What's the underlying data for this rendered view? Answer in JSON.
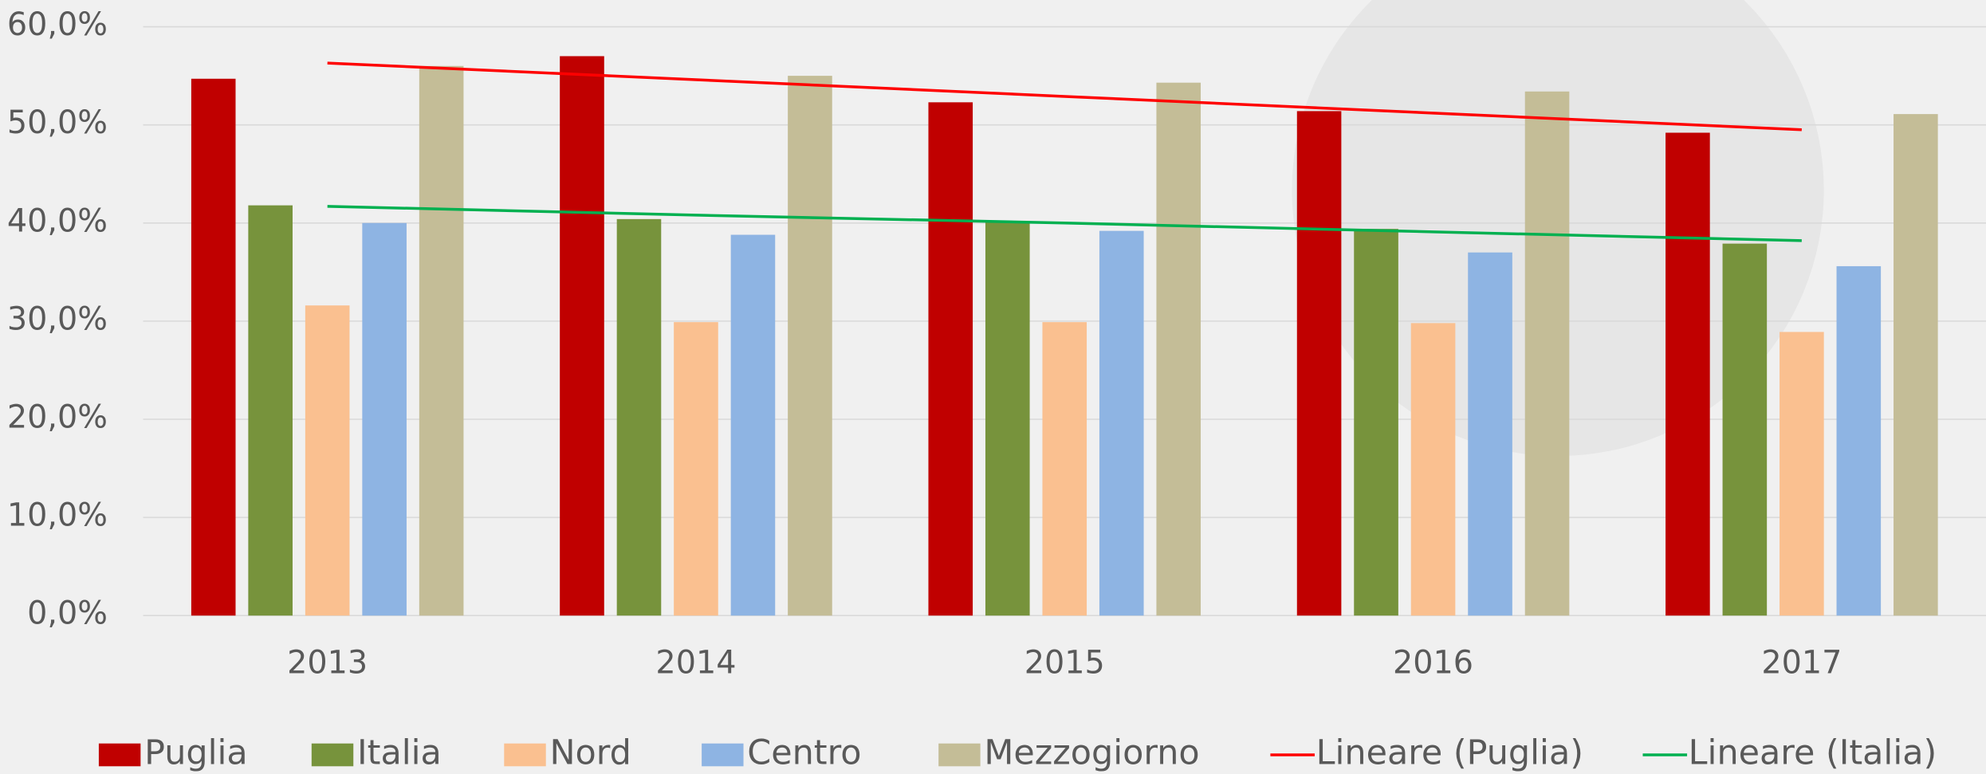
{
  "chart_data": {
    "type": "bar",
    "categories": [
      "2013",
      "2014",
      "2015",
      "2016",
      "2017"
    ],
    "series": [
      {
        "name": "Puglia",
        "color": "#c00000",
        "values": [
          54.7,
          57.0,
          52.3,
          51.4,
          49.2
        ]
      },
      {
        "name": "Italia",
        "color": "#77933c",
        "values": [
          41.8,
          40.4,
          40.1,
          39.4,
          37.9
        ]
      },
      {
        "name": "Nord",
        "color": "#fac090",
        "values": [
          31.6,
          29.9,
          29.9,
          29.8,
          28.9
        ]
      },
      {
        "name": "Centro",
        "color": "#8eb4e3",
        "values": [
          40.0,
          38.8,
          39.2,
          37.0,
          35.6
        ]
      },
      {
        "name": "Mezzogiorno",
        "color": "#c4bd97",
        "values": [
          56.0,
          55.0,
          54.3,
          53.4,
          51.1
        ]
      },
      {
        "name": "Lineare (Puglia)",
        "type": "line",
        "color": "#ff0000",
        "values": [
          56.3,
          54.6,
          52.9,
          51.2,
          49.5
        ]
      },
      {
        "name": "Lineare (Italia)",
        "type": "line",
        "color": "#00b050",
        "values": [
          41.7,
          40.8,
          40.0,
          39.1,
          38.2
        ]
      }
    ],
    "ylim": [
      0,
      60
    ],
    "yticks": [
      {
        "value": 0,
        "label": "0,0%"
      },
      {
        "value": 10,
        "label": "10,0%"
      },
      {
        "value": 20,
        "label": "20,0%"
      },
      {
        "value": 30,
        "label": "30,0%"
      },
      {
        "value": 40,
        "label": "40,0%"
      },
      {
        "value": 50,
        "label": "50,0%"
      },
      {
        "value": 60,
        "label": "60,0%"
      }
    ],
    "grid": true,
    "legend": "bottom"
  }
}
